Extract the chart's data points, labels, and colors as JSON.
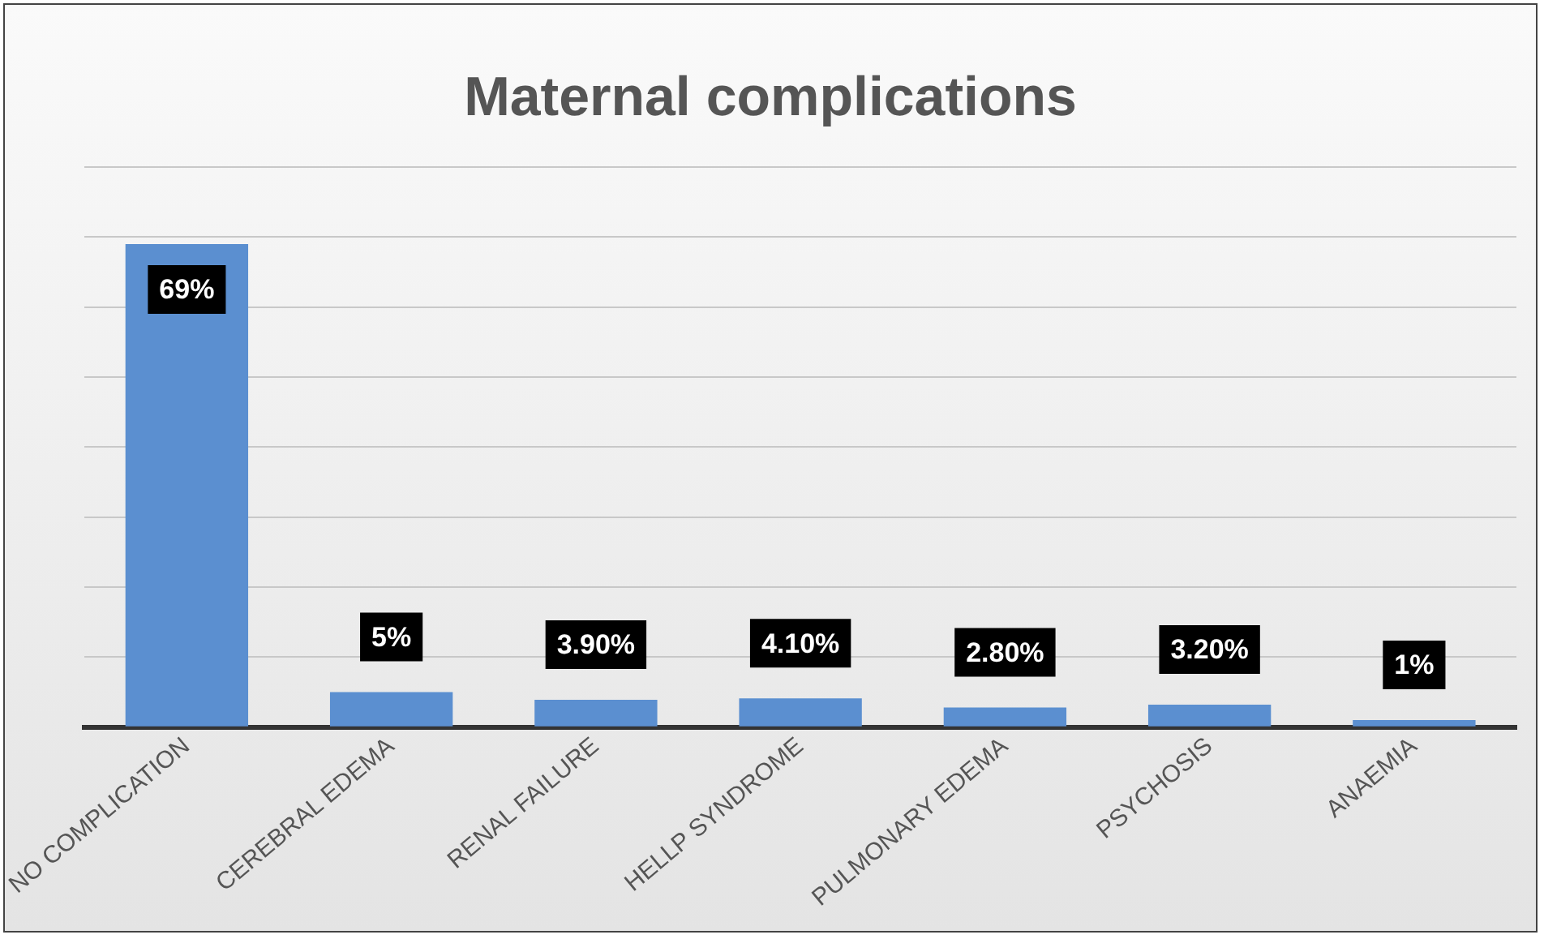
{
  "chart_data": {
    "type": "bar",
    "title": "Maternal complications",
    "categories": [
      "NO COMPLICATION",
      "CEREBRAL EDEMA",
      "RENAL FAILURE",
      "HELLP SYNDROME",
      "PULMONARY EDEMA",
      "PSYCHOSIS",
      "ANAEMIA"
    ],
    "values": [
      69,
      5,
      3.9,
      4.1,
      2.8,
      3.2,
      1
    ],
    "value_labels": [
      "69%",
      "5%",
      "3.90%",
      "4.10%",
      "2.80%",
      "3.20%",
      "1%"
    ],
    "color": "#5b8fd0",
    "ylim": [
      0,
      80
    ],
    "yticks": [
      {
        "value": 0,
        "label": null
      },
      {
        "value": 10,
        "label": null
      },
      {
        "value": 20,
        "label": null
      },
      {
        "value": 30,
        "label": null
      },
      {
        "value": 40,
        "label": null
      },
      {
        "value": 50,
        "label": null
      },
      {
        "value": 60,
        "label": null
      },
      {
        "value": 70,
        "label": null
      },
      {
        "value": 80,
        "label": null
      }
    ],
    "grid": "y",
    "legend": false,
    "tick_labels": "x"
  }
}
